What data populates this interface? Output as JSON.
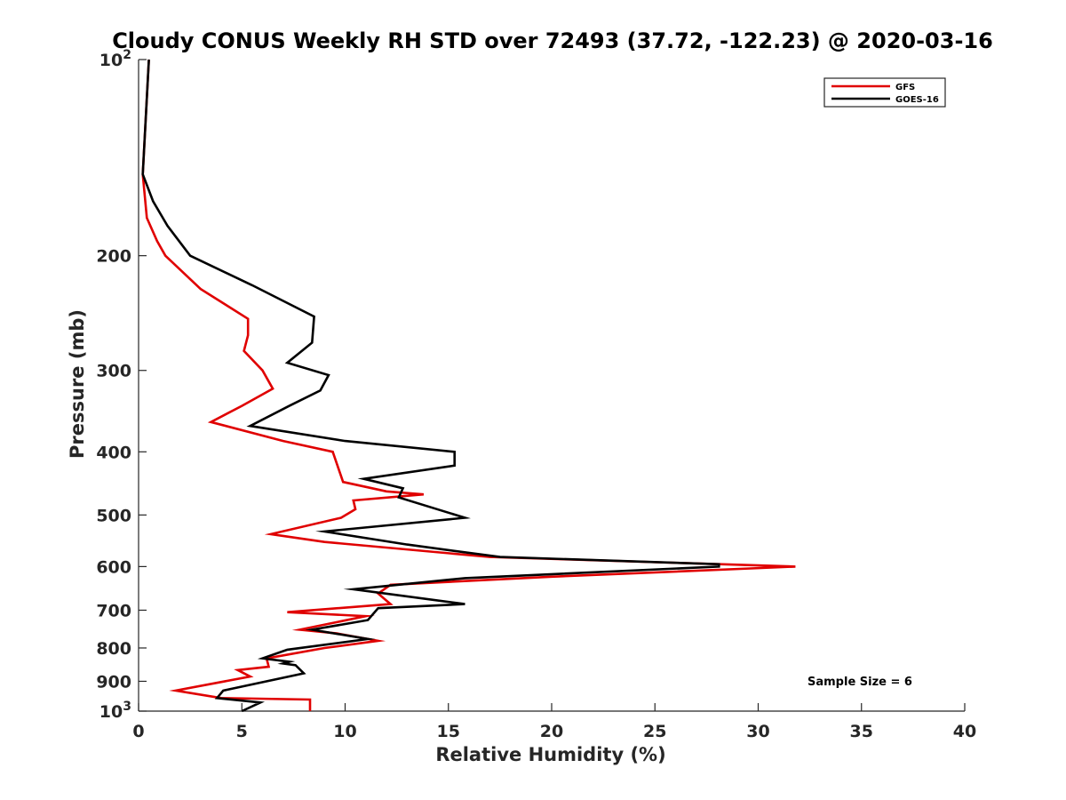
{
  "chart_data": {
    "type": "line",
    "title": "Cloudy CONUS Weekly RH STD over 72493 (37.72, -122.23) @ 2020-03-16",
    "xlabel": "Relative Humidity (%)",
    "ylabel": "Pressure (mb)",
    "xlim": [
      0,
      40
    ],
    "ylim": [
      100,
      1000
    ],
    "y_scale": "log",
    "y_reversed": true,
    "x_ticks": [
      0,
      5,
      10,
      15,
      20,
      25,
      30,
      35,
      40
    ],
    "x_tick_labels": [
      "0",
      "5",
      "10",
      "15",
      "20",
      "25",
      "30",
      "35",
      "40"
    ],
    "y_ticks": [
      100,
      200,
      300,
      400,
      500,
      600,
      700,
      800,
      900,
      1000
    ],
    "y_tick_labels": [
      "10^2",
      "200",
      "300",
      "400",
      "500",
      "600",
      "700",
      "800",
      "900",
      "10^3"
    ],
    "grid": false,
    "legend_position": "top-right",
    "annotation": "Sample Size = 6",
    "series": [
      {
        "name": "GFS",
        "color": "#e00000",
        "points": [
          [
            0.5,
            100
          ],
          [
            0.2,
            150
          ],
          [
            0.4,
            175
          ],
          [
            0.9,
            190
          ],
          [
            1.3,
            200
          ],
          [
            3.0,
            225
          ],
          [
            5.3,
            250
          ],
          [
            5.3,
            265
          ],
          [
            5.1,
            280
          ],
          [
            6.0,
            300
          ],
          [
            6.5,
            320
          ],
          [
            5.0,
            340
          ],
          [
            3.5,
            360
          ],
          [
            7.0,
            385
          ],
          [
            9.4,
            400
          ],
          [
            9.9,
            445
          ],
          [
            12.0,
            460
          ],
          [
            13.8,
            465
          ],
          [
            10.4,
            475
          ],
          [
            10.5,
            490
          ],
          [
            9.8,
            505
          ],
          [
            6.4,
            535
          ],
          [
            9.0,
            550
          ],
          [
            17.0,
            580
          ],
          [
            31.8,
            600
          ],
          [
            20.0,
            622
          ],
          [
            12.2,
            640
          ],
          [
            11.6,
            660
          ],
          [
            12.2,
            685
          ],
          [
            7.2,
            705
          ],
          [
            11.0,
            715
          ],
          [
            7.8,
            750
          ],
          [
            9.6,
            760
          ],
          [
            11.6,
            780
          ],
          [
            9.0,
            800
          ],
          [
            6.2,
            830
          ],
          [
            6.3,
            855
          ],
          [
            4.8,
            865
          ],
          [
            5.4,
            885
          ],
          [
            1.8,
            930
          ],
          [
            4.0,
            955
          ],
          [
            8.3,
            960
          ],
          [
            8.3,
            1000
          ]
        ]
      },
      {
        "name": "GOES-16",
        "color": "#000000",
        "points": [
          [
            0.5,
            100
          ],
          [
            0.2,
            150
          ],
          [
            0.7,
            165
          ],
          [
            1.4,
            180
          ],
          [
            2.5,
            200
          ],
          [
            5.5,
            222
          ],
          [
            8.5,
            248
          ],
          [
            8.4,
            272
          ],
          [
            7.2,
            292
          ],
          [
            9.2,
            305
          ],
          [
            8.8,
            322
          ],
          [
            7.3,
            340
          ],
          [
            5.4,
            365
          ],
          [
            10.0,
            385
          ],
          [
            15.3,
            400
          ],
          [
            15.3,
            420
          ],
          [
            10.9,
            440
          ],
          [
            12.8,
            455
          ],
          [
            12.6,
            470
          ],
          [
            15.8,
            505
          ],
          [
            9.0,
            530
          ],
          [
            13.0,
            555
          ],
          [
            17.5,
            580
          ],
          [
            28.1,
            595
          ],
          [
            28.1,
            600
          ],
          [
            15.8,
            625
          ],
          [
            10.4,
            650
          ],
          [
            15.8,
            685
          ],
          [
            11.6,
            695
          ],
          [
            11.1,
            725
          ],
          [
            8.4,
            750
          ],
          [
            11.1,
            775
          ],
          [
            7.2,
            805
          ],
          [
            6.0,
            830
          ],
          [
            7.3,
            840
          ],
          [
            7.0,
            845
          ],
          [
            7.6,
            850
          ],
          [
            8.0,
            875
          ],
          [
            4.1,
            930
          ],
          [
            3.8,
            955
          ],
          [
            5.9,
            970
          ],
          [
            5.0,
            1000
          ]
        ]
      }
    ]
  }
}
